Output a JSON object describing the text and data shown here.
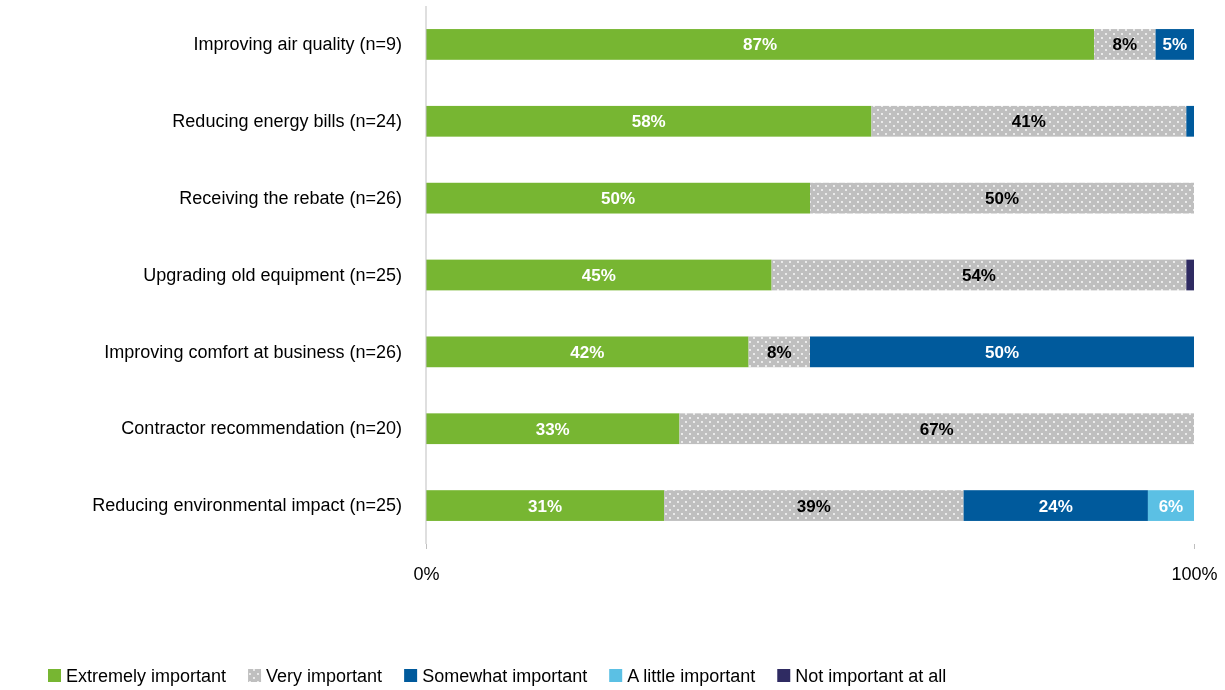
{
  "chart_data": {
    "type": "bar",
    "orientation": "horizontal",
    "stacked": true,
    "categories": [
      "Improving air quality (n=9)",
      "Reducing energy bills (n=24)",
      "Receiving the rebate (n=26)",
      "Upgrading old equipment (n=25)",
      "Improving comfort at business (n=26)",
      "Contractor recommendation (n=20)",
      "Reducing environmental impact (n=25)"
    ],
    "series": [
      {
        "name": "Extremely important",
        "color": "#77b632",
        "values": [
          87,
          58,
          50,
          45,
          42,
          33,
          31
        ],
        "value_labels": [
          "87%",
          "58%",
          "50%",
          "45%",
          "42%",
          "33%",
          "31%"
        ]
      },
      {
        "name": "Very important",
        "color": "#bfbfbf",
        "values": [
          8,
          41,
          50,
          54,
          8,
          67,
          39
        ],
        "value_labels": [
          "8%",
          "41%",
          "50%",
          "54%",
          "8%",
          "67%",
          "39%"
        ]
      },
      {
        "name": "Somewhat important",
        "color": "#005a9c",
        "values": [
          5,
          1,
          0,
          0,
          50,
          0,
          24
        ],
        "value_labels": [
          "5%",
          null,
          null,
          null,
          "50%",
          null,
          "24%"
        ]
      },
      {
        "name": "A little important",
        "color": "#5bc0e4",
        "values": [
          0,
          0,
          0,
          0,
          0,
          0,
          6
        ],
        "value_labels": [
          null,
          null,
          null,
          null,
          null,
          null,
          "6%"
        ]
      },
      {
        "name": "Not important at all",
        "color": "#2f2b62",
        "values": [
          0,
          0,
          0,
          1,
          0,
          0,
          0
        ],
        "value_labels": [
          null,
          null,
          null,
          null,
          null,
          null,
          null
        ]
      }
    ],
    "xlim": [
      0,
      100
    ],
    "xticks": [
      {
        "value": 0,
        "label": "0%"
      },
      {
        "value": 100,
        "label": "100%"
      }
    ],
    "grid": false,
    "legend": "bottom"
  }
}
